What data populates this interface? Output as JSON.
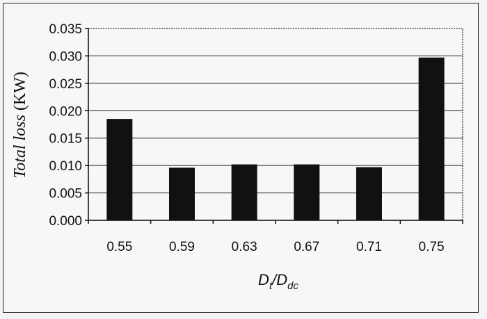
{
  "chart_data": {
    "type": "bar",
    "categories": [
      "0.55",
      "0.59",
      "0.63",
      "0.67",
      "0.71",
      "0.75"
    ],
    "values": [
      0.0185,
      0.0096,
      0.0102,
      0.0102,
      0.0097,
      0.0297
    ],
    "ylim": [
      0,
      0.035
    ],
    "yticks": [
      "0.000",
      "0.005",
      "0.010",
      "0.015",
      "0.020",
      "0.025",
      "0.030",
      "0.035"
    ],
    "ylabel": {
      "italic": "Total loss",
      "unit": " (KW)"
    },
    "xlabel": {
      "main": "D",
      "sub1": "t",
      "slash": "/D",
      "sub2": "dc"
    },
    "grid": true,
    "bar_color": "#111111"
  }
}
